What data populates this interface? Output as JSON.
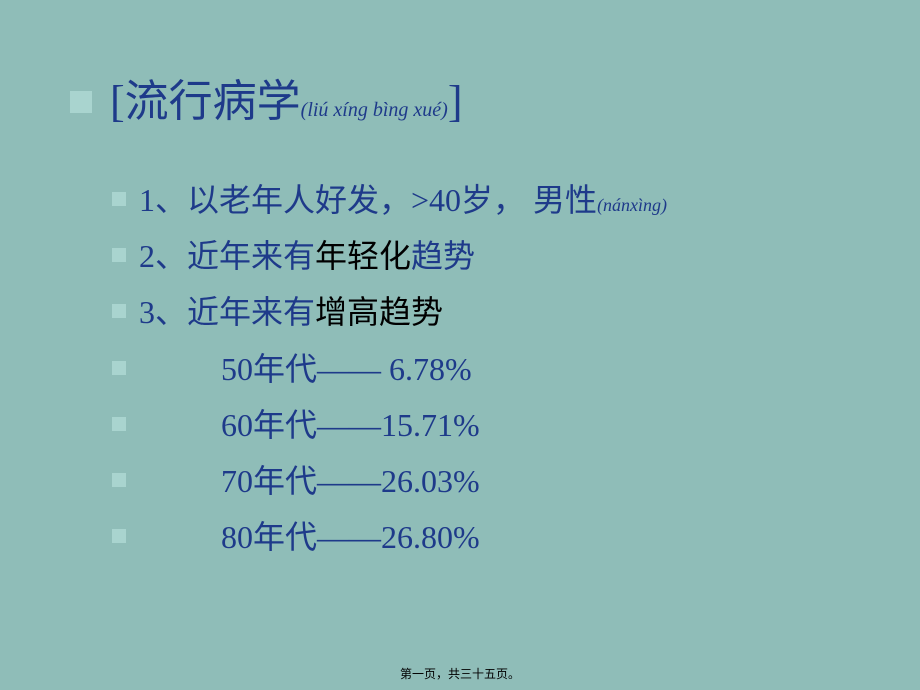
{
  "title": {
    "bracket_open": "[",
    "main": "流行病学",
    "pinyin": "(liú xíng bìng xué)",
    "bracket_close": "]"
  },
  "bullets": [
    {
      "prefix": "1、以老年人好发，>40岁， 男性",
      "black": "",
      "suffix": "",
      "pinyin": "(nánxìng)",
      "indent": false
    },
    {
      "prefix": "2、近年来有",
      "black": "年轻化",
      "suffix": "趋势",
      "pinyin": "",
      "indent": false
    },
    {
      "prefix": "3、近年来有",
      "black": "增高趋势",
      "suffix": "",
      "pinyin": "",
      "indent": false
    },
    {
      "prefix": "50年代——  6.78%",
      "black": "",
      "suffix": "",
      "pinyin": "",
      "indent": true
    },
    {
      "prefix": "60年代——15.71%",
      "black": "",
      "suffix": "",
      "pinyin": "",
      "indent": true
    },
    {
      "prefix": "70年代——26.03%",
      "black": "",
      "suffix": "",
      "pinyin": "",
      "indent": true
    },
    {
      "prefix": "80年代——26.80%",
      "black": "",
      "suffix": "",
      "pinyin": "",
      "indent": true
    }
  ],
  "footer": "第一页，共三十五页。",
  "colors": {
    "background": "#8fbdb8",
    "text_primary": "#1e3a8a",
    "text_black": "#000000",
    "bullet": "#a9d4cf"
  }
}
